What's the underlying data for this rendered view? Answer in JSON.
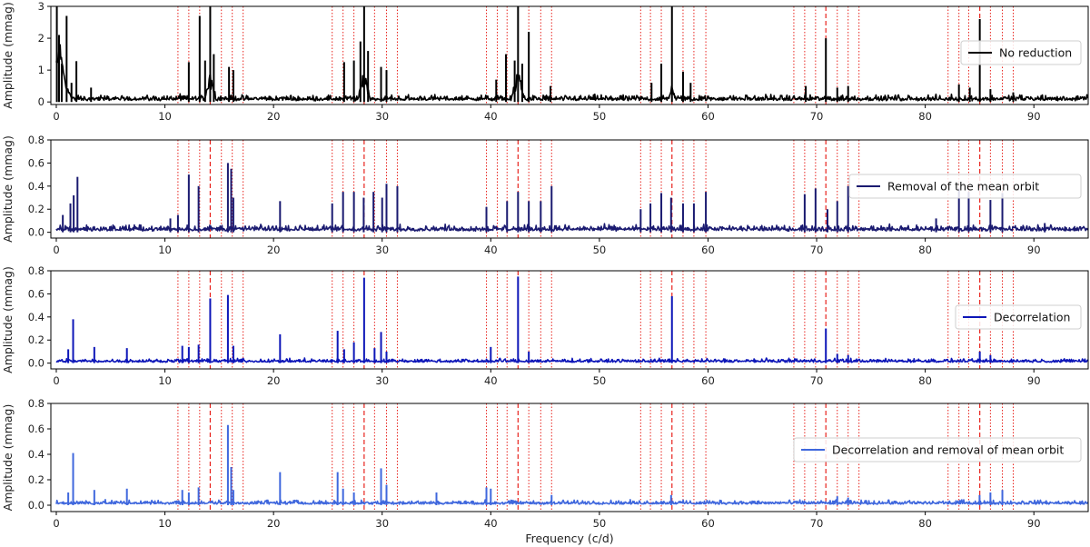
{
  "chart_data": {
    "type": "line",
    "xlabel": "Frequency (c/d)",
    "xlim": [
      -0.5,
      95
    ],
    "xticks": [
      0,
      10,
      20,
      30,
      40,
      50,
      60,
      70,
      80,
      90
    ],
    "dashed_lines_x": [
      14.17,
      28.34,
      42.51,
      56.68,
      70.85,
      85.02
    ],
    "dotted_lines_x": [
      11.2,
      12.2,
      13.2,
      15.2,
      16.2,
      17.2,
      25.4,
      26.4,
      27.4,
      29.3,
      30.4,
      31.4,
      39.6,
      40.6,
      41.5,
      43.5,
      44.6,
      45.6,
      53.8,
      54.7,
      55.7,
      57.7,
      58.7,
      59.8,
      67.9,
      68.9,
      69.9,
      71.9,
      72.9,
      73.9,
      82.1,
      83.1,
      84.0,
      86.0,
      87.1,
      88.1
    ],
    "reference_line_color": "#e8231d",
    "panels": [
      {
        "legend": "No reduction",
        "color": "#000000",
        "ylabel": "Amplitude (mmag)",
        "ylim": [
          -0.08,
          3.0
        ],
        "yticks": [
          0,
          1,
          2,
          3
        ],
        "noise": 0.14,
        "peaks": [
          [
            0.05,
            3.0
          ],
          [
            0.25,
            2.1
          ],
          [
            0.5,
            1.2
          ],
          [
            0.95,
            2.7
          ],
          [
            1.4,
            0.6
          ],
          [
            1.85,
            1.28
          ],
          [
            3.2,
            0.45
          ],
          [
            12.2,
            1.25
          ],
          [
            13.2,
            2.7
          ],
          [
            13.7,
            1.3
          ],
          [
            14.17,
            3.0
          ],
          [
            14.5,
            1.5
          ],
          [
            15.9,
            1.1
          ],
          [
            16.3,
            1.0
          ],
          [
            26.5,
            1.25
          ],
          [
            27.4,
            1.3
          ],
          [
            28.0,
            1.9
          ],
          [
            28.34,
            3.0
          ],
          [
            28.7,
            1.6
          ],
          [
            29.9,
            1.1
          ],
          [
            30.4,
            1.0
          ],
          [
            40.5,
            0.7
          ],
          [
            41.4,
            1.5
          ],
          [
            42.2,
            1.3
          ],
          [
            42.51,
            3.0
          ],
          [
            42.9,
            1.2
          ],
          [
            43.5,
            2.2
          ],
          [
            45.5,
            0.5
          ],
          [
            54.8,
            0.6
          ],
          [
            55.7,
            1.2
          ],
          [
            56.68,
            3.0
          ],
          [
            57.7,
            0.95
          ],
          [
            58.4,
            0.6
          ],
          [
            69.0,
            0.5
          ],
          [
            70.85,
            2.0
          ],
          [
            71.9,
            0.45
          ],
          [
            72.9,
            0.5
          ],
          [
            83.1,
            0.55
          ],
          [
            84.1,
            0.45
          ],
          [
            85.02,
            2.6
          ],
          [
            86.0,
            0.4
          ],
          [
            88.1,
            0.3
          ]
        ],
        "humps": [
          [
            0.4,
            0.5,
            1.2
          ],
          [
            14.17,
            0.55,
            0.9
          ],
          [
            28.34,
            0.55,
            1.0
          ],
          [
            42.51,
            0.6,
            1.0
          ],
          [
            56.68,
            0.3,
            0.5
          ]
        ]
      },
      {
        "legend": "Removal of the mean orbit",
        "color": "#1a1a70",
        "ylabel": "Amplitude (mmag)",
        "ylim": [
          -0.05,
          0.8
        ],
        "yticks": [
          0.0,
          0.2,
          0.4,
          0.6,
          0.8
        ],
        "noise": 0.04,
        "peaks": [
          [
            0.6,
            0.15
          ],
          [
            1.3,
            0.25
          ],
          [
            1.6,
            0.32
          ],
          [
            1.95,
            0.48
          ],
          [
            10.5,
            0.12
          ],
          [
            11.2,
            0.15
          ],
          [
            12.2,
            0.5
          ],
          [
            13.1,
            0.4
          ],
          [
            15.8,
            0.6
          ],
          [
            16.1,
            0.55
          ],
          [
            16.3,
            0.3
          ],
          [
            20.6,
            0.27
          ],
          [
            25.4,
            0.25
          ],
          [
            26.4,
            0.35
          ],
          [
            27.4,
            0.35
          ],
          [
            28.3,
            0.3
          ],
          [
            29.2,
            0.35
          ],
          [
            30.0,
            0.3
          ],
          [
            30.4,
            0.42
          ],
          [
            31.4,
            0.4
          ],
          [
            39.6,
            0.22
          ],
          [
            41.5,
            0.27
          ],
          [
            42.51,
            0.35
          ],
          [
            43.5,
            0.27
          ],
          [
            44.6,
            0.27
          ],
          [
            45.6,
            0.4
          ],
          [
            53.8,
            0.2
          ],
          [
            54.7,
            0.25
          ],
          [
            55.7,
            0.34
          ],
          [
            56.6,
            0.3
          ],
          [
            57.7,
            0.25
          ],
          [
            58.7,
            0.25
          ],
          [
            59.8,
            0.35
          ],
          [
            68.9,
            0.33
          ],
          [
            69.9,
            0.38
          ],
          [
            71.0,
            0.2
          ],
          [
            71.9,
            0.27
          ],
          [
            72.9,
            0.4
          ],
          [
            81.0,
            0.12
          ],
          [
            83.1,
            0.38
          ],
          [
            84.0,
            0.35
          ],
          [
            86.0,
            0.28
          ],
          [
            87.1,
            0.34
          ],
          [
            91.0,
            0.08
          ]
        ],
        "humps": []
      },
      {
        "legend": "Decorrelation",
        "color": "#0d16b8",
        "ylabel": "Amplitude (mmag)",
        "ylim": [
          -0.05,
          0.8
        ],
        "yticks": [
          0.0,
          0.2,
          0.4,
          0.6,
          0.8
        ],
        "noise": 0.025,
        "peaks": [
          [
            1.55,
            0.38
          ],
          [
            1.1,
            0.12
          ],
          [
            3.5,
            0.14
          ],
          [
            6.5,
            0.13
          ],
          [
            11.6,
            0.15
          ],
          [
            12.2,
            0.14
          ],
          [
            13.1,
            0.16
          ],
          [
            14.17,
            0.56
          ],
          [
            15.8,
            0.59
          ],
          [
            16.3,
            0.15
          ],
          [
            20.6,
            0.25
          ],
          [
            25.9,
            0.28
          ],
          [
            26.5,
            0.12
          ],
          [
            27.4,
            0.18
          ],
          [
            28.34,
            0.74
          ],
          [
            29.3,
            0.13
          ],
          [
            29.9,
            0.27
          ],
          [
            30.4,
            0.1
          ],
          [
            40.0,
            0.14
          ],
          [
            42.51,
            0.75
          ],
          [
            43.5,
            0.1
          ],
          [
            56.68,
            0.58
          ],
          [
            70.85,
            0.3
          ],
          [
            71.9,
            0.08
          ],
          [
            72.9,
            0.07
          ],
          [
            85.02,
            0.1
          ],
          [
            86.0,
            0.07
          ]
        ],
        "humps": []
      },
      {
        "legend": "Decorrelation and removal of mean orbit",
        "color": "#3f67dd",
        "ylabel": "Amplitude (mmag)",
        "ylim": [
          -0.05,
          0.8
        ],
        "yticks": [
          0.0,
          0.2,
          0.4,
          0.6,
          0.8
        ],
        "noise": 0.025,
        "peaks": [
          [
            1.55,
            0.41
          ],
          [
            1.1,
            0.1
          ],
          [
            3.5,
            0.12
          ],
          [
            6.5,
            0.13
          ],
          [
            11.6,
            0.12
          ],
          [
            12.2,
            0.1
          ],
          [
            13.1,
            0.14
          ],
          [
            15.8,
            0.63
          ],
          [
            16.1,
            0.3
          ],
          [
            16.3,
            0.12
          ],
          [
            20.6,
            0.26
          ],
          [
            25.9,
            0.26
          ],
          [
            26.4,
            0.13
          ],
          [
            27.4,
            0.1
          ],
          [
            29.9,
            0.29
          ],
          [
            30.4,
            0.16
          ],
          [
            35.0,
            0.1
          ],
          [
            39.6,
            0.14
          ],
          [
            40.0,
            0.13
          ],
          [
            45.6,
            0.08
          ],
          [
            56.6,
            0.08
          ],
          [
            71.9,
            0.07
          ],
          [
            72.9,
            0.06
          ],
          [
            85.0,
            0.08
          ],
          [
            86.0,
            0.1
          ],
          [
            87.1,
            0.12
          ]
        ],
        "humps": []
      }
    ]
  }
}
